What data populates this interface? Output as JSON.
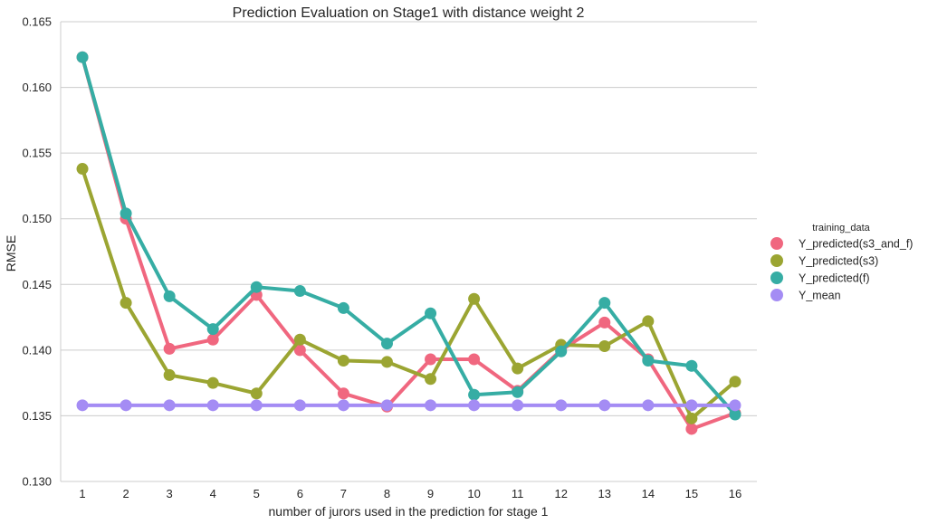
{
  "chart_data": {
    "type": "line",
    "title": "Prediction Evaluation on Stage1 with distance weight 2",
    "xlabel": "number of jurors used in the prediction for stage 1",
    "ylabel": "RMSE",
    "categories": [
      "1",
      "2",
      "3",
      "4",
      "5",
      "6",
      "7",
      "8",
      "9",
      "10",
      "11",
      "12",
      "13",
      "14",
      "15",
      "16"
    ],
    "ylim": [
      0.13,
      0.165
    ],
    "yticks": [
      "0.130",
      "0.135",
      "0.140",
      "0.145",
      "0.150",
      "0.155",
      "0.160",
      "0.165"
    ],
    "grid": "horizontal",
    "legend_position": "right",
    "legend_title": "training_data",
    "series": [
      {
        "name": "Y_predicted(s3_and_f)",
        "color": "#f0677f",
        "values": [
          0.1623,
          0.15,
          0.1401,
          0.1408,
          0.1442,
          0.14,
          0.1367,
          0.1357,
          0.1393,
          0.1393,
          0.1369,
          0.14,
          0.1421,
          0.1393,
          0.134,
          0.1352
        ]
      },
      {
        "name": "Y_predicted(s3)",
        "color": "#9ba532",
        "values": [
          0.1538,
          0.1436,
          0.1381,
          0.1375,
          0.1367,
          0.1408,
          0.1392,
          0.1391,
          0.1378,
          0.1439,
          0.1386,
          0.1404,
          0.1403,
          0.1422,
          0.1348,
          0.1376
        ]
      },
      {
        "name": "Y_predicted(f)",
        "color": "#36ada4",
        "values": [
          0.1623,
          0.1504,
          0.1441,
          0.1416,
          0.1448,
          0.1445,
          0.1432,
          0.1405,
          0.1428,
          0.1366,
          0.1368,
          0.1399,
          0.1436,
          0.1392,
          0.1388,
          0.1351
        ]
      },
      {
        "name": "Y_mean",
        "color": "#a48cf4",
        "values": [
          0.1358,
          0.1358,
          0.1358,
          0.1358,
          0.1358,
          0.1358,
          0.1358,
          0.1358,
          0.1358,
          0.1358,
          0.1358,
          0.1358,
          0.1358,
          0.1358,
          0.1358,
          0.1358
        ]
      }
    ]
  }
}
